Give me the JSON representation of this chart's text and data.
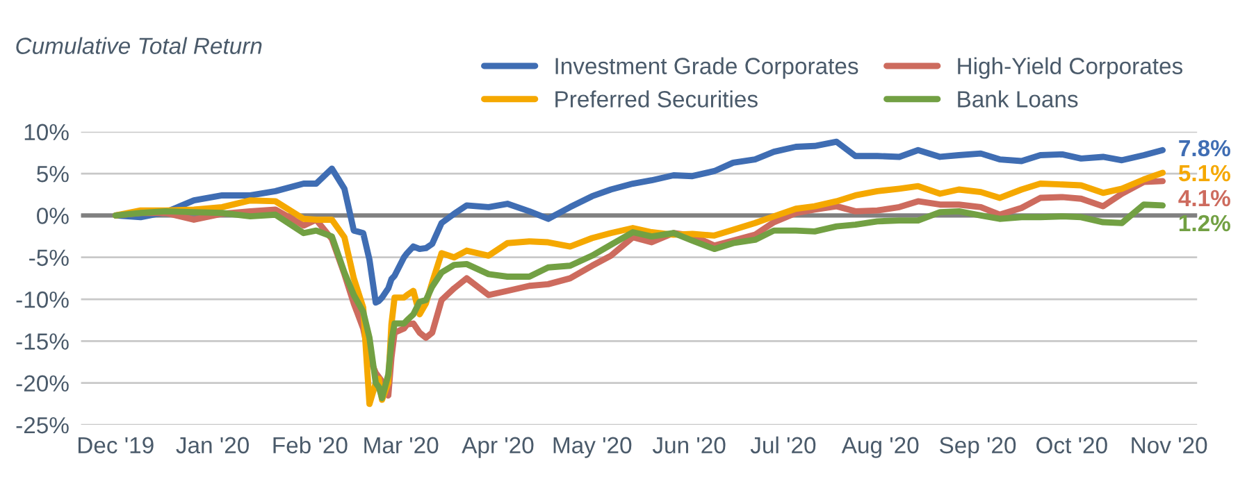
{
  "chart_data": {
    "type": "line",
    "title": "Cumulative Total Return",
    "x": [
      "2019-12-01",
      "2019-12-09",
      "2019-12-17",
      "2019-12-26",
      "2020-01-04",
      "2020-01-13",
      "2020-01-21",
      "2020-01-30",
      "2020-02-03",
      "2020-02-08",
      "2020-02-12",
      "2020-02-15",
      "2020-02-18",
      "2020-02-20",
      "2020-02-22",
      "2020-02-23",
      "2020-02-24",
      "2020-02-26",
      "2020-02-27",
      "2020-02-28",
      "2020-03-02",
      "2020-03-03",
      "2020-03-05",
      "2020-03-07",
      "2020-03-09",
      "2020-03-11",
      "2020-03-14",
      "2020-03-18",
      "2020-03-22",
      "2020-03-29",
      "2020-04-04",
      "2020-04-11",
      "2020-04-17",
      "2020-04-24",
      "2020-05-01",
      "2020-05-07",
      "2020-05-14",
      "2020-05-20",
      "2020-05-27",
      "2020-06-02",
      "2020-06-09",
      "2020-06-15",
      "2020-06-22",
      "2020-06-28",
      "2020-07-05",
      "2020-07-11",
      "2020-07-18",
      "2020-07-24",
      "2020-07-31",
      "2020-08-07",
      "2020-08-13",
      "2020-08-20",
      "2020-08-26",
      "2020-09-02",
      "2020-09-08",
      "2020-09-15",
      "2020-09-21",
      "2020-09-28",
      "2020-10-04",
      "2020-10-11",
      "2020-10-17",
      "2020-10-24",
      "2020-10-30"
    ],
    "series": [
      {
        "name": "Investment Grade Corporates",
        "color": "#3f6db3",
        "values": [
          0,
          -0.2,
          0.4,
          1.8,
          2.4,
          2.4,
          2.9,
          3.8,
          3.8,
          5.6,
          3.2,
          -1.8,
          -2.1,
          -5.3,
          -10.4,
          -10.2,
          -9.8,
          -8.7,
          -7.6,
          -7.2,
          -5.0,
          -4.5,
          -3.7,
          -4.0,
          -3.9,
          -3.4,
          -0.9,
          0.2,
          1.2,
          1.0,
          1.4,
          0.5,
          -0.4,
          1.0,
          2.3,
          3.1,
          3.8,
          4.2,
          4.8,
          4.7,
          5.3,
          6.3,
          6.7,
          7.6,
          8.2,
          8.3,
          8.8,
          7.1,
          7.1,
          7.0,
          7.8,
          7.0,
          7.2,
          7.4,
          6.7,
          6.5,
          7.2,
          7.3,
          6.8,
          7.0,
          6.6,
          7.2,
          7.8
        ],
        "value_labels": [
          null,
          null,
          null,
          null,
          null,
          null,
          null,
          null,
          null,
          null,
          null,
          null,
          null,
          null,
          null,
          null,
          null,
          null,
          null,
          null,
          null,
          null,
          null,
          null,
          null,
          null,
          null,
          null,
          null,
          null,
          null,
          null,
          null,
          null,
          null,
          null,
          null,
          null,
          null,
          null,
          null,
          null,
          null,
          null,
          null,
          null,
          null,
          null,
          null,
          null,
          null,
          null,
          null,
          null,
          null,
          null,
          null,
          null,
          null,
          null,
          null,
          null,
          "7.8%"
        ]
      },
      {
        "name": "High-Yield Corporates",
        "color": "#cd6b5e",
        "values": [
          0,
          0.3,
          0.3,
          -0.5,
          0.2,
          0.5,
          0.7,
          -1.2,
          -0.5,
          -2.8,
          -7,
          -10.5,
          -13.5,
          -17,
          -18.8,
          -19.3,
          -19.8,
          -21.5,
          -17,
          -14,
          -13.5,
          -13,
          -12.9,
          -14,
          -14.6,
          -14,
          -10.1,
          -8.7,
          -7.5,
          -9.5,
          -9,
          -8.4,
          -8.2,
          -7.5,
          -6,
          -4.8,
          -2.6,
          -3.2,
          -2.1,
          -2.4,
          -3.6,
          -3.0,
          -2.3,
          -0.8,
          0.3,
          0.7,
          1.1,
          0.5,
          0.6,
          1.0,
          1.7,
          1.3,
          1.3,
          1.0,
          0.1,
          0.9,
          2.1,
          2.2,
          2.0,
          1.1,
          2.6,
          4.0,
          4.1
        ],
        "value_labels": [
          null,
          null,
          null,
          null,
          null,
          null,
          null,
          null,
          null,
          null,
          null,
          null,
          null,
          null,
          null,
          null,
          null,
          null,
          null,
          null,
          null,
          null,
          null,
          null,
          null,
          null,
          null,
          null,
          null,
          null,
          null,
          null,
          null,
          null,
          null,
          null,
          null,
          null,
          null,
          null,
          null,
          null,
          null,
          null,
          null,
          null,
          null,
          null,
          null,
          null,
          null,
          null,
          null,
          null,
          null,
          null,
          null,
          null,
          null,
          null,
          null,
          null,
          "4.1%"
        ]
      },
      {
        "name": "Preferred Securities",
        "color": "#f5a800",
        "values": [
          0,
          0.6,
          0.6,
          0.7,
          1.0,
          1.8,
          1.7,
          -0.4,
          -0.5,
          -0.5,
          -2.6,
          -7.5,
          -11,
          -22.5,
          -20,
          -19.5,
          -22,
          -20,
          -13,
          -9.8,
          -9.8,
          -9.5,
          -9,
          -11.8,
          -10.5,
          -8,
          -4.5,
          -5,
          -4.2,
          -4.8,
          -3.3,
          -3.1,
          -3.2,
          -3.7,
          -2.7,
          -2.1,
          -1.5,
          -2.0,
          -2.3,
          -2.2,
          -2.4,
          -1.7,
          -0.9,
          -0.1,
          0.8,
          1.1,
          1.7,
          2.4,
          2.9,
          3.2,
          3.5,
          2.6,
          3.1,
          2.8,
          2.1,
          3.1,
          3.8,
          3.7,
          3.6,
          2.7,
          3.2,
          4.3,
          5.1
        ],
        "value_labels": [
          null,
          null,
          null,
          null,
          null,
          null,
          null,
          null,
          null,
          null,
          null,
          null,
          null,
          null,
          null,
          null,
          null,
          null,
          null,
          null,
          null,
          null,
          null,
          null,
          null,
          null,
          null,
          null,
          null,
          null,
          null,
          null,
          null,
          null,
          null,
          null,
          null,
          null,
          null,
          null,
          null,
          null,
          null,
          null,
          null,
          null,
          null,
          null,
          null,
          null,
          null,
          null,
          null,
          null,
          null,
          null,
          null,
          null,
          null,
          null,
          null,
          null,
          "5.1%"
        ]
      },
      {
        "name": "Bank Loans",
        "color": "#72a043",
        "values": [
          0,
          0.3,
          0.5,
          0.4,
          0.3,
          -0.1,
          0.1,
          -2.1,
          -1.8,
          -2.5,
          -6.8,
          -9.5,
          -11.5,
          -14.6,
          -20,
          -20.5,
          -21.8,
          -19,
          -15,
          -12.9,
          -12.9,
          -12.5,
          -11.8,
          -10.3,
          -10.1,
          -8.5,
          -6.8,
          -5.9,
          -5.8,
          -7,
          -7.3,
          -7.3,
          -6.2,
          -6.0,
          -4.8,
          -3.5,
          -2.0,
          -2.5,
          -2.1,
          -3,
          -4.0,
          -3.3,
          -2.9,
          -1.8,
          -1.8,
          -1.9,
          -1.3,
          -1.1,
          -0.7,
          -0.6,
          -0.6,
          0.4,
          0.5,
          0.0,
          -0.4,
          -0.2,
          -0.2,
          -0.1,
          -0.2,
          -0.8,
          -0.9,
          1.3,
          1.2
        ],
        "value_labels": [
          null,
          null,
          null,
          null,
          null,
          null,
          null,
          null,
          null,
          null,
          null,
          null,
          null,
          null,
          null,
          null,
          null,
          null,
          null,
          null,
          null,
          null,
          null,
          null,
          null,
          null,
          null,
          null,
          null,
          null,
          null,
          null,
          null,
          null,
          null,
          null,
          null,
          null,
          null,
          null,
          null,
          null,
          null,
          null,
          null,
          null,
          null,
          null,
          null,
          null,
          null,
          null,
          null,
          null,
          null,
          null,
          null,
          null,
          null,
          null,
          null,
          null,
          "1.2%"
        ]
      }
    ],
    "xlim": [
      "2019-11-20",
      "2020-11-10"
    ],
    "xticks": [
      {
        "value": "2019-12-01",
        "label": "Dec '19"
      },
      {
        "value": "2020-01-01",
        "label": "Jan '20"
      },
      {
        "value": "2020-02-01",
        "label": "Feb '20"
      },
      {
        "value": "2020-03-01",
        "label": "Mar '20"
      },
      {
        "value": "2020-04-01",
        "label": "Apr '20"
      },
      {
        "value": "2020-05-01",
        "label": "May '20"
      },
      {
        "value": "2020-06-01",
        "label": "Jun '20"
      },
      {
        "value": "2020-07-01",
        "label": "Jul '20"
      },
      {
        "value": "2020-08-01",
        "label": "Aug '20"
      },
      {
        "value": "2020-09-01",
        "label": "Sep '20"
      },
      {
        "value": "2020-10-01",
        "label": "Oct '20"
      },
      {
        "value": "2020-11-01",
        "label": "Nov '20"
      }
    ],
    "ylim": [
      -25,
      10
    ],
    "yticks": [
      {
        "value": -25,
        "label": "-25%"
      },
      {
        "value": -20,
        "label": "-20%"
      },
      {
        "value": -15,
        "label": "-15%"
      },
      {
        "value": -10,
        "label": "-10%"
      },
      {
        "value": -5,
        "label": "-5%"
      },
      {
        "value": 0,
        "label": "0%"
      },
      {
        "value": 5,
        "label": "5%"
      },
      {
        "value": 10,
        "label": "10%"
      }
    ],
    "ref_lines": [
      {
        "axis": "y",
        "value": 0,
        "color": "#808080"
      }
    ],
    "grid": "y",
    "legend": "top right",
    "marker": "none",
    "line_style": "solid"
  }
}
